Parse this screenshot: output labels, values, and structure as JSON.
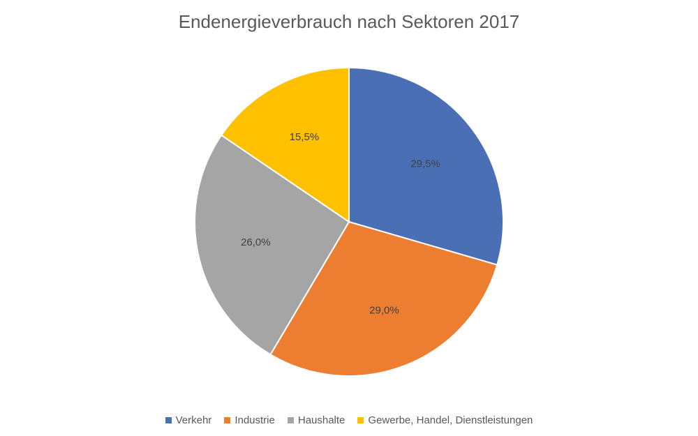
{
  "chart_data": {
    "type": "pie",
    "title": "Endenergieverbrauch nach Sektoren 2017",
    "slices": [
      {
        "name": "Verkehr",
        "value": 29.5,
        "label": "29,5%",
        "color": "#4A6FB5"
      },
      {
        "name": "Industrie",
        "value": 29.0,
        "label": "29,0%",
        "color": "#ED7D31"
      },
      {
        "name": "Haushalte",
        "value": 26.0,
        "label": "26,0%",
        "color": "#A5A5A5"
      },
      {
        "name": "Gewerbe, Handel, Dienstleistungen",
        "value": 15.5,
        "label": "15,5%",
        "color": "#FFC000"
      }
    ],
    "legend_position": "bottom"
  }
}
